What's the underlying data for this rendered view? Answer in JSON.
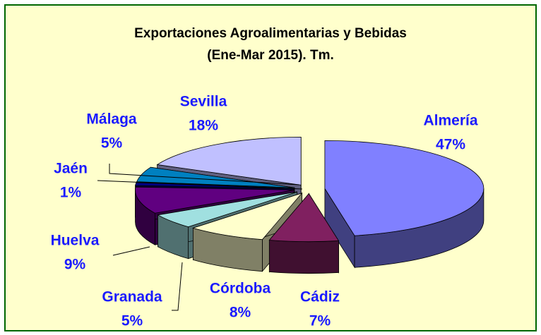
{
  "chart_data": {
    "type": "pie",
    "title": [
      "Exportaciones Agroalimentarias y Bebidas",
      "(Ene-Mar 2015). Tm."
    ],
    "categories": [
      "Almería",
      "Cádiz",
      "Córdoba",
      "Granada",
      "Huelva",
      "Jaén",
      "Málaga",
      "Sevilla"
    ],
    "values": [
      47,
      7,
      8,
      5,
      9,
      1,
      5,
      18
    ],
    "value_labels": [
      "47%",
      "7%",
      "8%",
      "5%",
      "9%",
      "1%",
      "5%",
      "18%"
    ],
    "colors": [
      "#8080ff",
      "#802060",
      "#ffffcc",
      "#a0e0e0",
      "#600080",
      "#000080",
      "#0080c0",
      "#c0c0ff"
    ]
  }
}
